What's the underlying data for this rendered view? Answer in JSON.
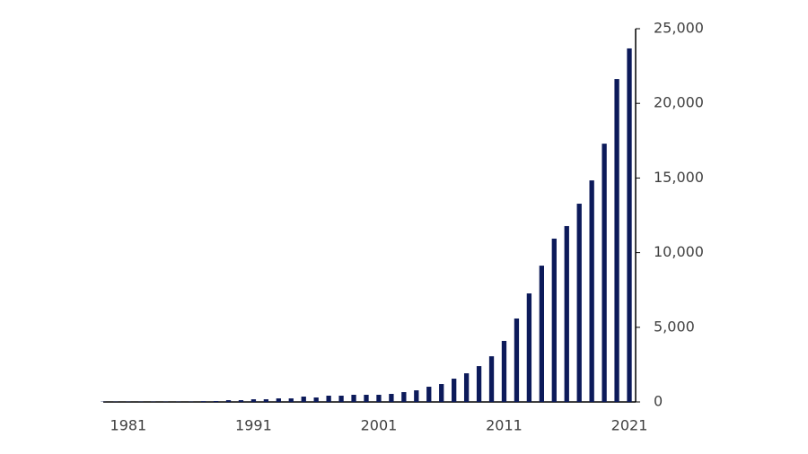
{
  "chart_data": {
    "type": "bar",
    "categories": [
      null,
      null,
      "1981",
      null,
      null,
      null,
      null,
      null,
      null,
      null,
      null,
      null,
      "1991",
      null,
      null,
      null,
      null,
      null,
      null,
      null,
      null,
      null,
      "2001",
      null,
      null,
      null,
      null,
      null,
      null,
      null,
      null,
      null,
      "2011",
      null,
      null,
      null,
      null,
      null,
      null,
      null,
      null,
      null,
      "2021"
    ],
    "values": [
      20,
      20,
      20,
      20,
      20,
      20,
      20,
      20,
      50,
      60,
      120,
      120,
      180,
      180,
      240,
      240,
      360,
      300,
      420,
      420,
      480,
      480,
      480,
      540,
      660,
      780,
      1020,
      1200,
      1560,
      1920,
      2400,
      3060,
      4090,
      5590,
      7270,
      9130,
      10940,
      11780,
      13280,
      14840,
      17300,
      21630,
      23680
    ],
    "color": "#0c1a5a",
    "ylim": [
      0,
      25000
    ],
    "yticks": [
      0,
      {
        "value": 5000,
        "label": "5,000"
      },
      {
        "value": 10000,
        "label": "10,000"
      },
      {
        "value": 15000,
        "label": "15,000"
      },
      {
        "value": 20000,
        "label": "20,000"
      },
      {
        "value": 25000,
        "label": "25,000"
      }
    ],
    "grid": false
  }
}
